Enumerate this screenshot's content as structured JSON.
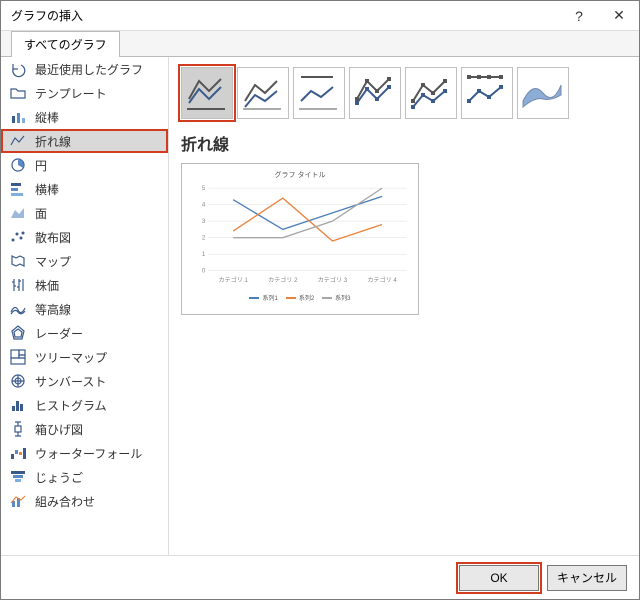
{
  "window": {
    "title": "グラフの挿入"
  },
  "tabs": [
    {
      "label": "すべてのグラフ"
    }
  ],
  "sidebar": [
    {
      "label": "最近使用したグラフ",
      "name": "recent",
      "icon": "undo"
    },
    {
      "label": "テンプレート",
      "name": "templates",
      "icon": "folder"
    },
    {
      "label": "縦棒",
      "name": "column",
      "icon": "column"
    },
    {
      "label": "折れ線",
      "name": "line",
      "icon": "line",
      "selected": true
    },
    {
      "label": "円",
      "name": "pie",
      "icon": "pie"
    },
    {
      "label": "横棒",
      "name": "bar",
      "icon": "bar"
    },
    {
      "label": "面",
      "name": "area",
      "icon": "area"
    },
    {
      "label": "散布図",
      "name": "scatter",
      "icon": "scatter"
    },
    {
      "label": "マップ",
      "name": "map",
      "icon": "map"
    },
    {
      "label": "株価",
      "name": "stock",
      "icon": "stock"
    },
    {
      "label": "等高線",
      "name": "surface",
      "icon": "surface"
    },
    {
      "label": "レーダー",
      "name": "radar",
      "icon": "radar"
    },
    {
      "label": "ツリーマップ",
      "name": "treemap",
      "icon": "treemap"
    },
    {
      "label": "サンバースト",
      "name": "sunburst",
      "icon": "sunburst"
    },
    {
      "label": "ヒストグラム",
      "name": "histogram",
      "icon": "histogram"
    },
    {
      "label": "箱ひげ図",
      "name": "boxwhisker",
      "icon": "box"
    },
    {
      "label": "ウォーターフォール",
      "name": "waterfall",
      "icon": "waterfall"
    },
    {
      "label": "じょうご",
      "name": "funnel",
      "icon": "funnel"
    },
    {
      "label": "組み合わせ",
      "name": "combo",
      "icon": "combo"
    }
  ],
  "thumbs": [
    {
      "name": "line-plain",
      "selected": true
    },
    {
      "name": "line-stacked"
    },
    {
      "name": "line-100stacked"
    },
    {
      "name": "line-markers"
    },
    {
      "name": "line-stacked-markers"
    },
    {
      "name": "line-100stacked-markers"
    },
    {
      "name": "line-3d"
    }
  ],
  "selected_chart_title": "折れ線",
  "preview": {
    "title": "グラフ タイトル",
    "categories": [
      "カテゴリ 1",
      "カテゴリ 2",
      "カテゴリ 3",
      "カテゴリ 4"
    ],
    "yticks": [
      0,
      1,
      2,
      3,
      4,
      5
    ],
    "series": [
      {
        "name": "系列1",
        "color": "#4a7ebb",
        "values": [
          4.3,
          2.5,
          3.5,
          4.5
        ]
      },
      {
        "name": "系列2",
        "color": "#e8833d",
        "values": [
          2.4,
          4.4,
          1.8,
          2.8
        ]
      },
      {
        "name": "系列3",
        "color": "#a6a6a6",
        "values": [
          2.0,
          2.0,
          3.0,
          5.0
        ]
      }
    ]
  },
  "buttons": {
    "ok": "OK",
    "cancel": "キャンセル"
  },
  "colors": {
    "highlight": "#d13b20",
    "series1": "#4a7ebb",
    "series2": "#e8833d",
    "series3": "#a6a6a6",
    "thumb_accent": "#3b5b8c",
    "thumb_dark": "#555"
  }
}
